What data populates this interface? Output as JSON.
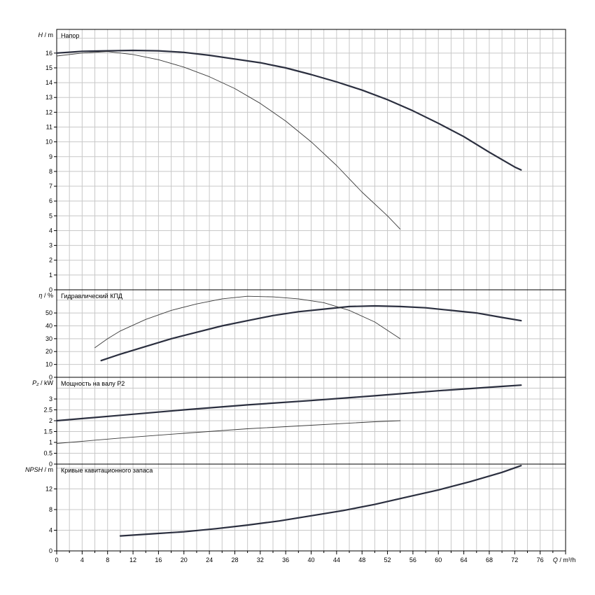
{
  "chart_data": {
    "type": "line",
    "x_axis": {
      "label_symbol": "Q",
      "label_unit": "m³/h",
      "range": [
        0,
        80
      ],
      "ticks": [
        0,
        4,
        8,
        12,
        16,
        20,
        24,
        28,
        32,
        36,
        40,
        44,
        48,
        52,
        56,
        60,
        64,
        68,
        72,
        76
      ]
    },
    "grid": true,
    "panels": [
      {
        "id": "head",
        "title": "Напор",
        "y_symbol": "H",
        "y_unit": "m",
        "ylim": [
          0,
          17.6
        ],
        "ticks": [
          0,
          1,
          2,
          3,
          4,
          5,
          6,
          7,
          8,
          9,
          10,
          11,
          12,
          13,
          14,
          15,
          16
        ],
        "series": [
          {
            "line": "thick",
            "points": [
              [
                0,
                16.0
              ],
              [
                4,
                16.12
              ],
              [
                8,
                16.15
              ],
              [
                12,
                16.18
              ],
              [
                16,
                16.15
              ],
              [
                20,
                16.05
              ],
              [
                24,
                15.85
              ],
              [
                28,
                15.6
              ],
              [
                32,
                15.35
              ],
              [
                36,
                15.0
              ],
              [
                40,
                14.55
              ],
              [
                44,
                14.05
              ],
              [
                48,
                13.5
              ],
              [
                52,
                12.85
              ],
              [
                56,
                12.1
              ],
              [
                60,
                11.25
              ],
              [
                64,
                10.35
              ],
              [
                68,
                9.3
              ],
              [
                72,
                8.3
              ],
              [
                73,
                8.1
              ]
            ]
          },
          {
            "line": "thin",
            "points": [
              [
                0,
                15.8
              ],
              [
                4,
                16.0
              ],
              [
                8,
                16.1
              ],
              [
                12,
                15.9
              ],
              [
                16,
                15.55
              ],
              [
                20,
                15.05
              ],
              [
                24,
                14.4
              ],
              [
                28,
                13.6
              ],
              [
                32,
                12.6
              ],
              [
                36,
                11.4
              ],
              [
                40,
                10.0
              ],
              [
                44,
                8.4
              ],
              [
                48,
                6.6
              ],
              [
                52,
                5.0
              ],
              [
                54,
                4.1
              ]
            ]
          }
        ]
      },
      {
        "id": "efficiency",
        "title": "Гидравлический КПД",
        "y_symbol": "η",
        "y_unit": "%",
        "ylim": [
          0,
          68
        ],
        "ticks": [
          0,
          10,
          20,
          30,
          40,
          50
        ],
        "series": [
          {
            "line": "thick",
            "points": [
              [
                7,
                13
              ],
              [
                10,
                18
              ],
              [
                14,
                24
              ],
              [
                18,
                30
              ],
              [
                22,
                35
              ],
              [
                26,
                40
              ],
              [
                30,
                44
              ],
              [
                34,
                48
              ],
              [
                38,
                51
              ],
              [
                42,
                53
              ],
              [
                46,
                55
              ],
              [
                50,
                55.5
              ],
              [
                54,
                55
              ],
              [
                58,
                54
              ],
              [
                62,
                52
              ],
              [
                66,
                50
              ],
              [
                70,
                46.5
              ],
              [
                73,
                44
              ]
            ]
          },
          {
            "line": "thin",
            "points": [
              [
                6,
                23
              ],
              [
                8,
                30
              ],
              [
                10,
                36
              ],
              [
                14,
                45
              ],
              [
                18,
                52
              ],
              [
                22,
                57
              ],
              [
                26,
                61
              ],
              [
                30,
                63
              ],
              [
                34,
                62.5
              ],
              [
                38,
                61
              ],
              [
                42,
                58
              ],
              [
                46,
                52
              ],
              [
                50,
                43
              ],
              [
                54,
                30
              ]
            ]
          }
        ]
      },
      {
        "id": "power",
        "title": "Мощность на валу P2",
        "y_symbol": "P₂",
        "y_unit": "kW",
        "ylim": [
          0,
          4.0
        ],
        "ticks": [
          0,
          0.5,
          1,
          1.5,
          2,
          2.5,
          3
        ],
        "tick_labels": [
          "0",
          "0.5",
          "1",
          "1.5",
          "2",
          "2.5",
          "3"
        ],
        "series": [
          {
            "line": "thick",
            "points": [
              [
                0,
                2.0
              ],
              [
                10,
                2.25
              ],
              [
                20,
                2.5
              ],
              [
                30,
                2.73
              ],
              [
                40,
                2.93
              ],
              [
                50,
                3.15
              ],
              [
                60,
                3.38
              ],
              [
                70,
                3.58
              ],
              [
                73,
                3.64
              ]
            ]
          },
          {
            "line": "thin",
            "points": [
              [
                0,
                0.95
              ],
              [
                10,
                1.2
              ],
              [
                20,
                1.42
              ],
              [
                30,
                1.63
              ],
              [
                40,
                1.79
              ],
              [
                50,
                1.95
              ],
              [
                54,
                2.0
              ]
            ]
          }
        ]
      },
      {
        "id": "npsh",
        "title": "Кривые кавитационного запаса",
        "y_symbol": "NPSH",
        "y_unit": "m",
        "ylim": [
          0,
          16.8
        ],
        "ticks": [
          0,
          4,
          8,
          12
        ],
        "series": [
          {
            "line": "thick",
            "points": [
              [
                10,
                2.9
              ],
              [
                15,
                3.3
              ],
              [
                20,
                3.7
              ],
              [
                25,
                4.3
              ],
              [
                30,
                5.0
              ],
              [
                35,
                5.8
              ],
              [
                40,
                6.8
              ],
              [
                45,
                7.8
              ],
              [
                50,
                9.0
              ],
              [
                55,
                10.4
              ],
              [
                60,
                11.8
              ],
              [
                65,
                13.4
              ],
              [
                70,
                15.2
              ],
              [
                73,
                16.5
              ]
            ]
          }
        ]
      }
    ]
  }
}
